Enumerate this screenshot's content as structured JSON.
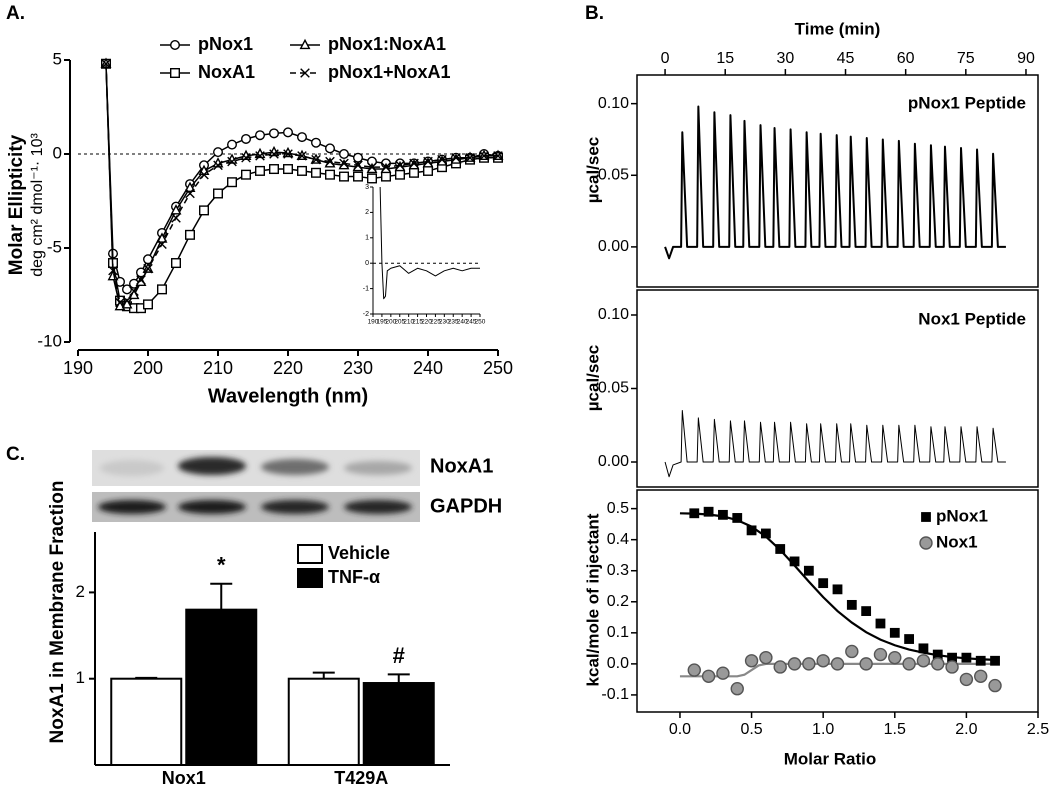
{
  "chart_data": [
    {
      "type": "line",
      "panel_label": "A.",
      "x_label": "Wavelength (nm)",
      "y_label": [
        "Molar Ellipticity",
        "deg cm² dmol⁻¹· 10³"
      ],
      "legend": "top",
      "zero_line": true,
      "xlim": [
        190,
        250
      ],
      "ylim": [
        -10,
        5
      ],
      "xticks": [
        190,
        200,
        210,
        220,
        230,
        240,
        250
      ],
      "yticks": [
        -10,
        -5,
        0,
        5
      ],
      "x": [
        194,
        195,
        196,
        197,
        198,
        199,
        200,
        202,
        204,
        206,
        208,
        210,
        212,
        214,
        216,
        218,
        220,
        222,
        224,
        226,
        228,
        230,
        232,
        234,
        236,
        238,
        240,
        242,
        244,
        246,
        248,
        250
      ],
      "series": [
        {
          "name": "pNox1",
          "color": "#000000",
          "marker": "circle",
          "marker_fill": "#ffffff",
          "values": [
            4.8,
            -5.3,
            -6.8,
            -7.2,
            -6.9,
            -6.3,
            -5.6,
            -4.2,
            -2.8,
            -1.6,
            -0.6,
            0.1,
            0.5,
            0.8,
            1.0,
            1.1,
            1.15,
            0.9,
            0.6,
            0.3,
            0.0,
            -0.2,
            -0.4,
            -0.5,
            -0.5,
            -0.5,
            -0.4,
            -0.3,
            -0.2,
            -0.2,
            0.0,
            -0.1
          ]
        },
        {
          "name": "NoxA1",
          "color": "#000000",
          "marker": "square",
          "marker_fill": "#ffffff",
          "values": [
            4.8,
            -5.8,
            -7.8,
            -8.1,
            -8.2,
            -8.2,
            -8.0,
            -7.2,
            -5.8,
            -4.3,
            -3.0,
            -2.1,
            -1.5,
            -1.1,
            -0.9,
            -0.8,
            -0.8,
            -0.9,
            -1.0,
            -1.1,
            -1.2,
            -1.2,
            -1.3,
            -1.2,
            -1.1,
            -1.0,
            -0.9,
            -0.7,
            -0.5,
            -0.3,
            -0.2,
            -0.2
          ]
        },
        {
          "name": "pNox1:NoxA1",
          "color": "#000000",
          "marker": "triangle",
          "marker_fill": "#ffffff",
          "values": [
            4.8,
            -6.5,
            -8.1,
            -8.0,
            -7.5,
            -6.8,
            -6.1,
            -4.5,
            -3.0,
            -1.8,
            -0.9,
            -0.5,
            -0.3,
            -0.1,
            0.0,
            0.1,
            0.05,
            -0.1,
            -0.3,
            -0.5,
            -0.6,
            -0.7,
            -0.8,
            -0.8,
            -0.7,
            -0.6,
            -0.5,
            -0.4,
            -0.3,
            -0.2,
            -0.1,
            -0.1
          ]
        },
        {
          "name": "pNox1+NoxA1",
          "color": "#000000",
          "marker": "x",
          "dash": true,
          "values": [
            4.8,
            -6.2,
            -7.9,
            -7.8,
            -7.3,
            -6.7,
            -6.1,
            -4.8,
            -3.4,
            -2.1,
            -1.1,
            -0.6,
            -0.4,
            -0.2,
            -0.1,
            0.0,
            0.0,
            -0.1,
            -0.3,
            -0.4,
            -0.5,
            -0.6,
            -0.7,
            -0.7,
            -0.6,
            -0.5,
            -0.4,
            -0.3,
            -0.2,
            -0.2,
            -0.1,
            -0.1
          ]
        }
      ]
    },
    {
      "type": "line",
      "zero_line": true,
      "xlim": [
        190,
        250
      ],
      "ylim": [
        -2,
        3
      ],
      "xticks": [
        190,
        195,
        200,
        205,
        210,
        215,
        220,
        225,
        230,
        235,
        240,
        245,
        250
      ],
      "yticks": [
        -2,
        -1,
        0,
        1,
        2,
        3
      ],
      "x": [
        194,
        195,
        196,
        197,
        198,
        200,
        205,
        210,
        215,
        220,
        225,
        230,
        235,
        240,
        245,
        250
      ],
      "series": [
        {
          "color": "#000000",
          "values": [
            3,
            0,
            -1.4,
            -1.3,
            -0.3,
            -0.2,
            -0.1,
            -0.4,
            -0.2,
            -0.3,
            -0.5,
            -0.3,
            -0.2,
            -0.3,
            -0.2,
            -0.2
          ]
        }
      ]
    },
    {
      "type": "line",
      "panel_label": "B.",
      "title": "pNox1 Peptide",
      "x_label": "Time (min)",
      "x_axis": "top",
      "y_label": "µcal/sec",
      "line_width": 2,
      "xlim": [
        -7,
        93
      ],
      "ylim": [
        -0.028,
        0.12
      ],
      "xticks": [
        0,
        15,
        30,
        45,
        60,
        75,
        90
      ],
      "yticks": [
        {
          "value": 0,
          "label": "0.00"
        },
        0.05,
        {
          "value": 0.1,
          "label": "0.10"
        }
      ],
      "x": [
        0,
        1,
        2,
        4,
        4.3,
        5.5,
        8,
        8.3,
        9.5,
        12,
        12.3,
        13.5,
        16,
        16.3,
        17.5,
        19.5,
        19.8,
        21,
        23.5,
        23.8,
        25,
        27,
        27.3,
        28.5,
        31,
        31.3,
        32.5,
        35,
        35.3,
        36.5,
        38.5,
        38.8,
        40,
        42.5,
        42.8,
        44,
        46,
        46.3,
        47.5,
        50,
        50.3,
        51.5,
        54,
        54.3,
        55.5,
        58,
        58.3,
        59.5,
        62,
        62.3,
        63.5,
        66,
        66.3,
        67.5,
        69.5,
        69.8,
        71,
        73.5,
        73.8,
        75,
        77.5,
        77.8,
        79,
        81.5,
        81.8,
        83,
        85
      ],
      "series": [
        {
          "color": "#000000",
          "values": [
            0,
            -0.008,
            0,
            0,
            0.08,
            0,
            0,
            0.098,
            0,
            0,
            0.094,
            0,
            0,
            0.092,
            0,
            0,
            0.088,
            0,
            0,
            0.085,
            0,
            0,
            0.083,
            0,
            0,
            0.082,
            0,
            0,
            0.08,
            0,
            0,
            0.079,
            0,
            0,
            0.078,
            0,
            0,
            0.077,
            0,
            0,
            0.076,
            0,
            0,
            0.075,
            0,
            0,
            0.074,
            0,
            0,
            0.072,
            0,
            0,
            0.071,
            0,
            0,
            0.07,
            0,
            0,
            0.069,
            0,
            0,
            0.068,
            0,
            0,
            0.065,
            0,
            0
          ]
        }
      ]
    },
    {
      "type": "line",
      "title": "Nox1 Peptide",
      "y_label": "µcal/sec",
      "line_width": 1,
      "xlim": [
        -7,
        93
      ],
      "ylim": [
        -0.017,
        0.117
      ],
      "yticks": [
        {
          "value": 0,
          "label": "0.00"
        },
        0.05,
        {
          "value": 0.1,
          "label": "0.10"
        }
      ],
      "x": [
        0,
        1,
        2,
        4,
        4.3,
        5.5,
        8,
        8.3,
        9.5,
        12,
        12.3,
        13.5,
        16,
        16.3,
        17.5,
        19.5,
        19.8,
        21,
        23.5,
        23.8,
        25,
        27,
        27.3,
        28.5,
        31,
        31.3,
        32.5,
        35,
        35.3,
        36.5,
        38.5,
        38.8,
        40,
        42.5,
        42.8,
        44,
        46,
        46.3,
        47.5,
        50,
        50.3,
        51.5,
        54,
        54.3,
        55.5,
        58,
        58.3,
        59.5,
        62,
        62.3,
        63.5,
        66,
        66.3,
        67.5,
        69.5,
        69.8,
        71,
        73.5,
        73.8,
        75,
        77.5,
        77.8,
        79,
        81.5,
        81.8,
        83,
        85
      ],
      "series": [
        {
          "color": "#000000",
          "values": [
            0,
            -0.01,
            -0.002,
            0,
            0.035,
            0,
            0,
            0.03,
            0,
            0,
            0.029,
            0,
            0,
            0.028,
            0,
            0,
            0.028,
            0,
            0,
            0.027,
            0,
            0,
            0.027,
            0,
            0,
            0.027,
            0,
            0,
            0.026,
            0,
            0,
            0.026,
            0,
            0,
            0.026,
            0,
            0,
            0.026,
            0,
            0,
            0.025,
            0,
            0,
            0.025,
            0,
            0,
            0.025,
            0,
            0,
            0.025,
            0,
            0,
            0.024,
            0,
            0,
            0.024,
            0,
            0,
            0.024,
            0,
            0,
            0.024,
            0,
            0,
            0.023,
            0,
            0
          ]
        }
      ]
    },
    {
      "type": "scatter",
      "x_label": "Molar Ratio",
      "y_label": "kcal/mole of injectant",
      "legend": "upper right",
      "xlim": [
        -0.3,
        2.5
      ],
      "ylim": [
        -0.155,
        0.56
      ],
      "xticks": [
        {
          "value": 0,
          "label": "0.0"
        },
        0.5,
        {
          "value": 1,
          "label": "1.0"
        },
        1.5,
        {
          "value": 2,
          "label": "2.0"
        },
        2.5
      ],
      "yticks": [
        -0.1,
        {
          "value": 0,
          "label": "0.0"
        },
        0.1,
        0.2,
        0.3,
        0.4,
        0.5
      ],
      "series": [
        {
          "name": "pNox1",
          "color": "#000000",
          "marker": "square",
          "marker_fill": "#000000",
          "x": [
            0.1,
            0.2,
            0.3,
            0.4,
            0.5,
            0.6,
            0.7,
            0.8,
            0.9,
            1.0,
            1.1,
            1.2,
            1.3,
            1.4,
            1.5,
            1.6,
            1.7,
            1.8,
            1.9,
            2.0,
            2.1,
            2.2
          ],
          "values": [
            0.485,
            0.49,
            0.48,
            0.47,
            0.43,
            0.42,
            0.37,
            0.33,
            0.3,
            0.26,
            0.24,
            0.19,
            0.17,
            0.13,
            0.1,
            0.08,
            0.05,
            0.03,
            0.02,
            0.02,
            0.01,
            0.01
          ]
        },
        {
          "name": "Nox1",
          "color": "#555555",
          "marker": "circle",
          "marker_fill": "#999999",
          "x": [
            0.1,
            0.2,
            0.3,
            0.4,
            0.5,
            0.6,
            0.7,
            0.8,
            0.9,
            1.0,
            1.1,
            1.2,
            1.3,
            1.4,
            1.5,
            1.6,
            1.7,
            1.8,
            1.9,
            2.0,
            2.1,
            2.2
          ],
          "values": [
            -0.02,
            -0.04,
            -0.03,
            -0.08,
            0.01,
            0.02,
            -0.01,
            0.0,
            0.0,
            0.01,
            0.0,
            0.04,
            0.0,
            0.03,
            0.02,
            0.0,
            0.01,
            0.0,
            -0.01,
            -0.05,
            -0.04,
            -0.07
          ]
        }
      ],
      "fits": [
        {
          "color": "#000000",
          "x": [
            0,
            0.1,
            0.2,
            0.3,
            0.4,
            0.5,
            0.6,
            0.7,
            0.8,
            0.9,
            1.0,
            1.1,
            1.2,
            1.3,
            1.4,
            1.5,
            1.6,
            1.7,
            1.8,
            1.9,
            2.0,
            2.1,
            2.2
          ],
          "values": [
            0.485,
            0.484,
            0.481,
            0.475,
            0.463,
            0.442,
            0.41,
            0.367,
            0.317,
            0.265,
            0.215,
            0.17,
            0.133,
            0.102,
            0.078,
            0.06,
            0.046,
            0.036,
            0.028,
            0.022,
            0.018,
            0.015,
            0.013
          ]
        },
        {
          "color": "#888888",
          "x": [
            0,
            0.4,
            0.45,
            0.5,
            0.55,
            0.6,
            2.2
          ],
          "values": [
            -0.04,
            -0.04,
            -0.035,
            -0.02,
            -0.005,
            0,
            0
          ]
        }
      ]
    },
    {
      "type": "bar",
      "panel_label": "C.",
      "y_label": "NoxA1 in Membrane Fraction",
      "blot_labels": [
        "NoxA1",
        "GAPDH"
      ],
      "ylim": [
        0,
        2.7
      ],
      "yticks": [
        1,
        2
      ],
      "categories": [
        "Nox1",
        "T429A"
      ],
      "series": [
        {
          "name": "Vehicle",
          "color": "#ffffff",
          "values": [
            1.0,
            1.0
          ],
          "errors": [
            0.01,
            0.07
          ]
        },
        {
          "name": "TNF-α",
          "color": "#000000",
          "values": [
            1.8,
            0.95
          ],
          "errors": [
            0.3,
            0.1
          ],
          "annotations": [
            "*",
            "#"
          ]
        }
      ]
    }
  ]
}
